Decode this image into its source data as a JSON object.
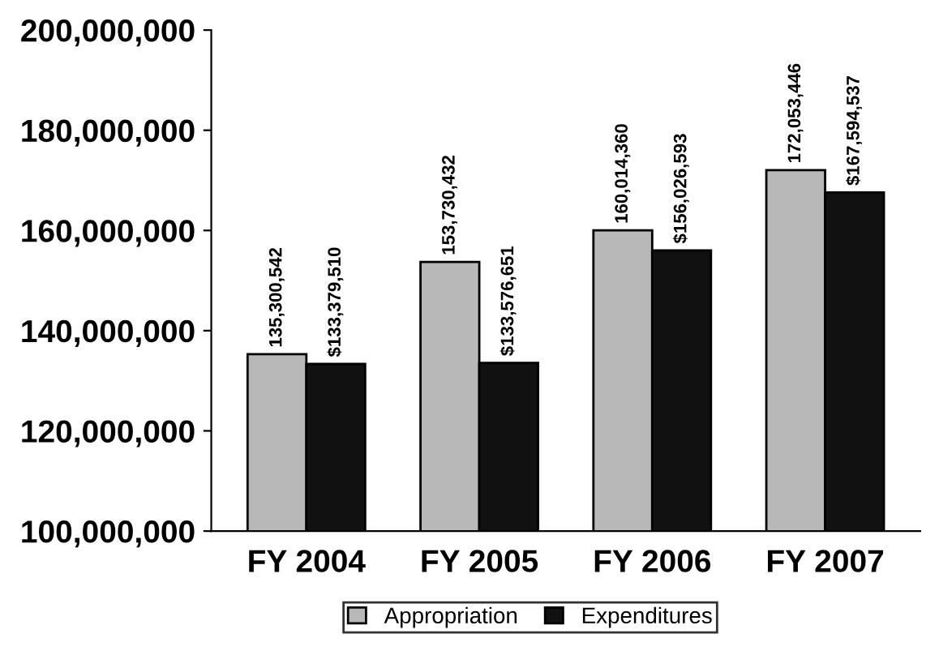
{
  "chart_data": {
    "type": "bar",
    "categories": [
      "FY 2004",
      "FY 2005",
      "FY 2006",
      "FY 2007"
    ],
    "series": [
      {
        "name": "Appropriation",
        "color": "#b8b8b8",
        "values": [
          135300542,
          153730432,
          160014360,
          172053446
        ],
        "value_labels": [
          "135,300,542",
          "153,730,432",
          "160,014,360",
          "172,053,446"
        ]
      },
      {
        "name": "Expenditures",
        "color": "#111111",
        "values": [
          133379510,
          133576651,
          156026593,
          167594537
        ],
        "value_labels": [
          "$133,379,510",
          "$133,576,651",
          "$156,026,593",
          "$167,594,537"
        ]
      }
    ],
    "ylim": [
      100000000,
      200000000
    ],
    "yticks": [
      {
        "value": 100000000,
        "label": "100,000,000"
      },
      {
        "value": 120000000,
        "label": "120,000,000"
      },
      {
        "value": 140000000,
        "label": "140,000,000"
      },
      {
        "value": 160000000,
        "label": "160,000,000"
      },
      {
        "value": 180000000,
        "label": "180,000,000"
      },
      {
        "value": 200000000,
        "label": "200,000,000"
      }
    ],
    "grid": false,
    "legend": "bottom"
  }
}
